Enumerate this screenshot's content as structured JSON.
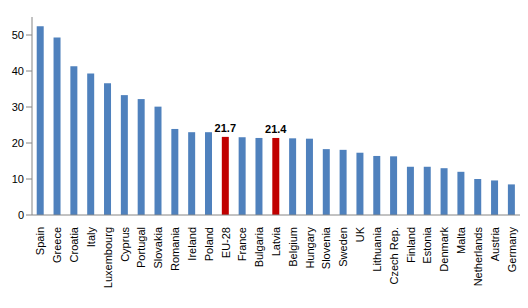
{
  "chart_data": {
    "type": "bar",
    "categories": [
      "Spain",
      "Greece",
      "Croatia",
      "Italy",
      "Luxembourg",
      "Cyprus",
      "Portugal",
      "Slovakia",
      "Romania",
      "Ireland",
      "Poland",
      "EU-28",
      "France",
      "Bulgaria",
      "Latvia",
      "Belgium",
      "Hungary",
      "Slovenia",
      "Sweden",
      "UK",
      "Lithuania",
      "Czech Rep.",
      "Finland",
      "Estonia",
      "Denmark",
      "Malta",
      "Netherlands",
      "Austria",
      "Germany"
    ],
    "values": [
      52.4,
      49.3,
      41.3,
      39.3,
      36.6,
      33.3,
      32.2,
      30.1,
      23.9,
      23.0,
      23.0,
      21.7,
      21.6,
      21.4,
      21.4,
      21.3,
      21.2,
      18.3,
      18.1,
      17.3,
      16.4,
      16.3,
      13.4,
      13.4,
      13.0,
      12.0,
      10.0,
      9.6,
      8.5
    ],
    "value_labels": [
      null,
      null,
      null,
      null,
      null,
      null,
      null,
      null,
      null,
      null,
      null,
      "21.7",
      null,
      null,
      "21.4",
      null,
      null,
      null,
      null,
      null,
      null,
      null,
      null,
      null,
      null,
      null,
      null,
      null,
      null
    ],
    "colors": [
      "#4f81bd",
      "#4f81bd",
      "#4f81bd",
      "#4f81bd",
      "#4f81bd",
      "#4f81bd",
      "#4f81bd",
      "#4f81bd",
      "#4f81bd",
      "#4f81bd",
      "#4f81bd",
      "#c00000",
      "#4f81bd",
      "#4f81bd",
      "#c00000",
      "#4f81bd",
      "#4f81bd",
      "#4f81bd",
      "#4f81bd",
      "#4f81bd",
      "#4f81bd",
      "#4f81bd",
      "#4f81bd",
      "#4f81bd",
      "#4f81bd",
      "#4f81bd",
      "#4f81bd",
      "#4f81bd",
      "#4f81bd"
    ],
    "ylim": [
      0,
      55
    ],
    "yticks": [
      0,
      10,
      20,
      30,
      40,
      50
    ],
    "grid": false
  }
}
